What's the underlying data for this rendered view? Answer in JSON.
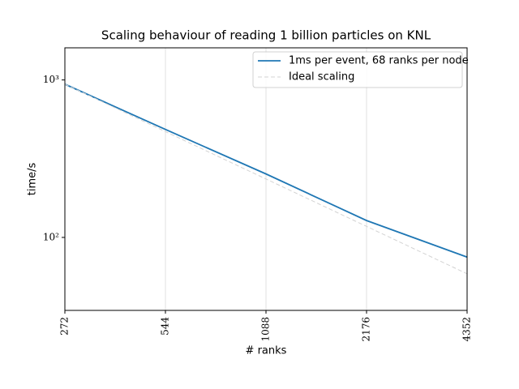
{
  "chart_data": {
    "type": "line",
    "title": "Scaling behaviour of reading 1 billion particles on KNL",
    "xlabel": "# ranks",
    "ylabel": "time/s",
    "x": [
      272,
      544,
      1088,
      2176,
      4352
    ],
    "series": [
      {
        "name": "1ms per event, 68 ranks per node",
        "color": "#1f77b4",
        "linestyle": "solid",
        "values": [
          940,
          485,
          253,
          128,
          75
        ]
      },
      {
        "name": "Ideal scaling",
        "color": "#d3d3d3",
        "linestyle": "dashed",
        "values": [
          940,
          470,
          235,
          117.5,
          58.75
        ]
      }
    ],
    "xscale": "log",
    "yscale": "log",
    "xlim": [
      272,
      4352
    ],
    "xticks": [
      272,
      544,
      1088,
      2176,
      4352
    ],
    "ylim": [
      34.4,
      1600
    ],
    "yticks": [
      {
        "value": 100,
        "label": "10²"
      },
      {
        "value": 1000,
        "label": "10³"
      }
    ],
    "grid": "x",
    "legend": "upper right"
  }
}
